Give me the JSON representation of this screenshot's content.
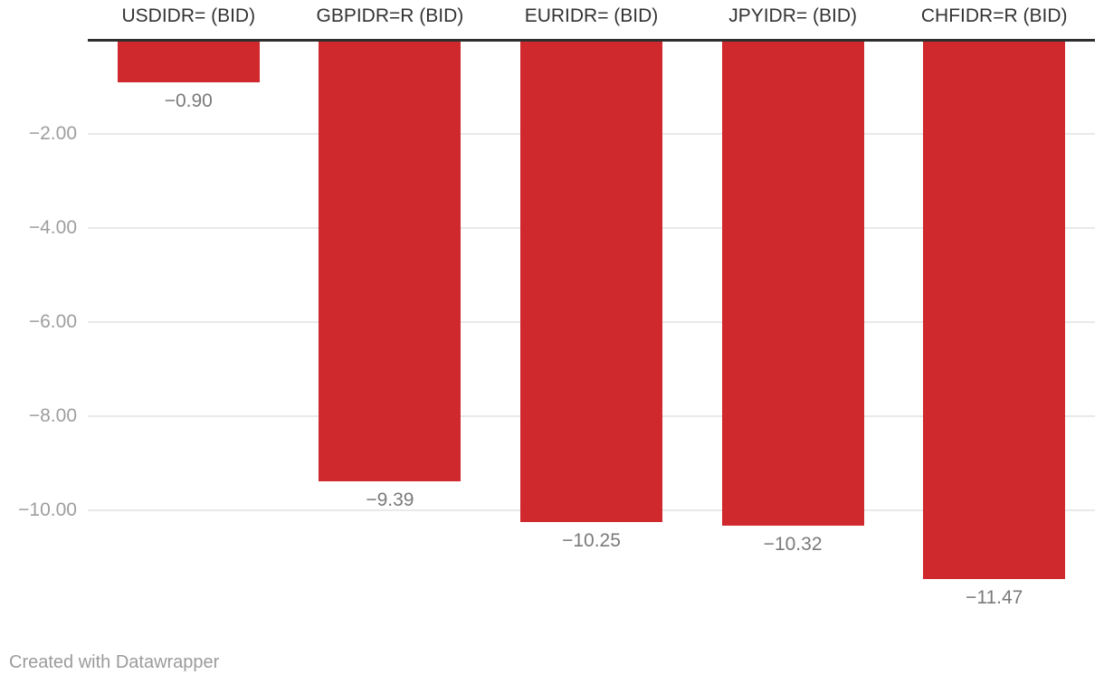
{
  "chart_data": {
    "type": "bar",
    "orientation": "vertical-columns",
    "categories": [
      "USDIDR= (BID)",
      "GBPIDR=R (BID)",
      "EURIDR= (BID)",
      "JPYIDR= (BID)",
      "CHFIDR=R (BID)"
    ],
    "values": [
      -0.9,
      -9.39,
      -10.25,
      -10.32,
      -11.47
    ],
    "value_labels": [
      "−0.90",
      "−9.39",
      "−10.25",
      "−10.32",
      "−11.47"
    ],
    "title": "",
    "xlabel": "",
    "ylabel": "",
    "ylim": [
      0,
      -12
    ],
    "y_ticks": [
      -2,
      -4,
      -6,
      -8,
      -10
    ],
    "y_tick_labels": [
      "−2.00",
      "−4.00",
      "−6.00",
      "−8.00",
      "−10.00"
    ],
    "grid": true,
    "legend": false,
    "bar_color": "#d0292d",
    "zero_line_color": "#2e2e2e",
    "gridline_color": "#e9e9e9",
    "header_color": "#333333",
    "value_label_color": "#7a7a7a",
    "tick_label_color": "#9e9e9e"
  },
  "footer": {
    "credit": "Created with Datawrapper"
  }
}
